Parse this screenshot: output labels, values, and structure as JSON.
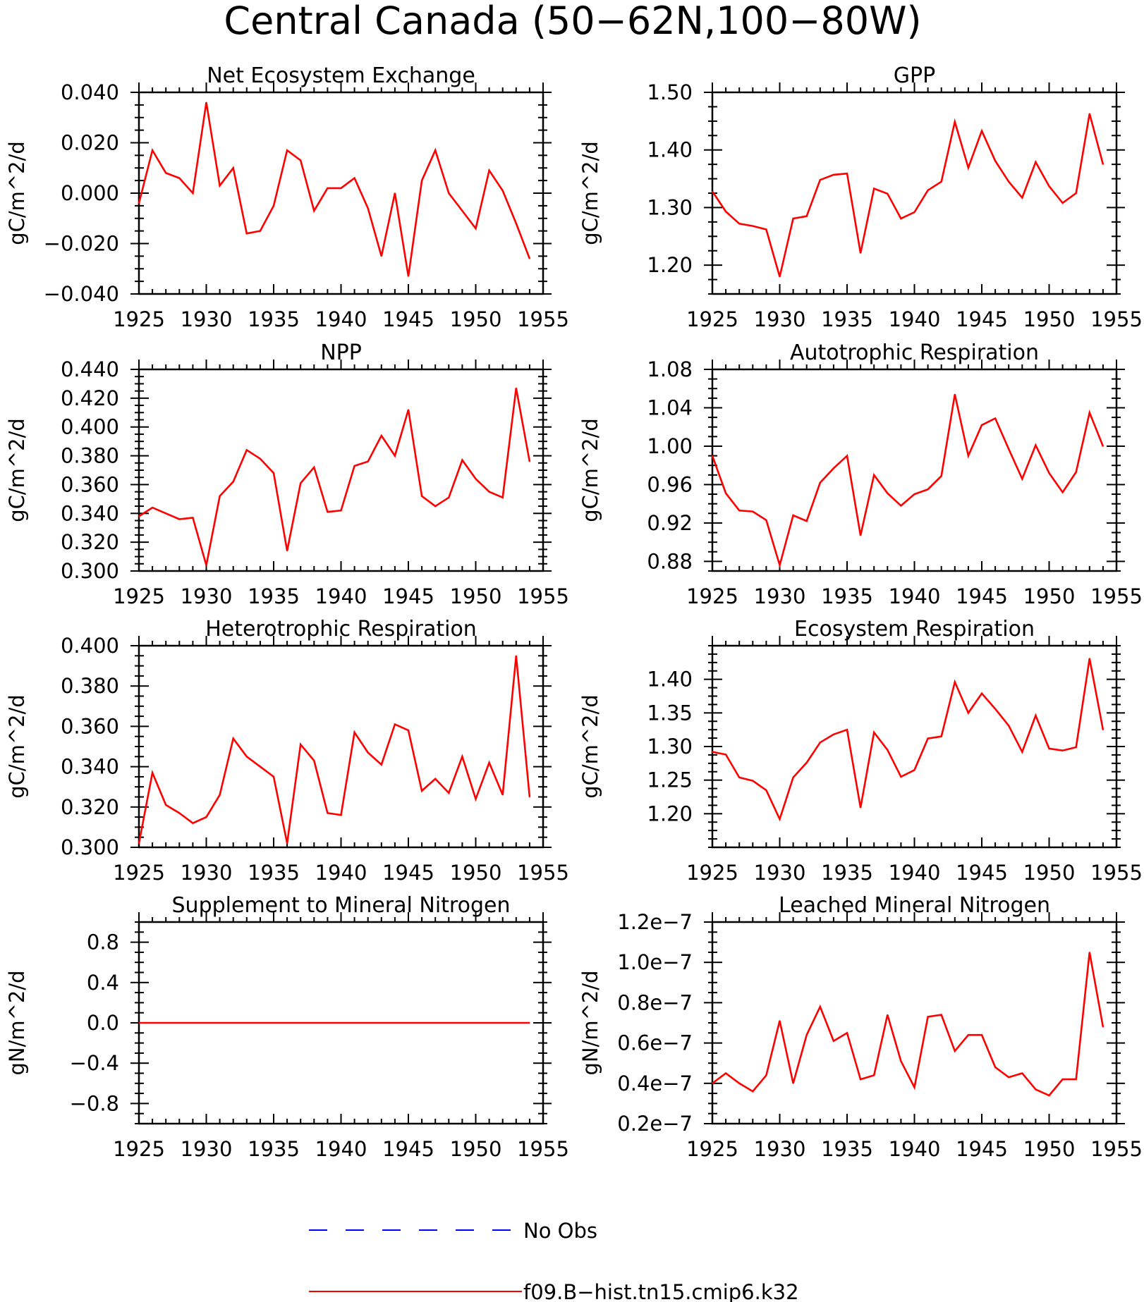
{
  "figure": {
    "title": "Central Canada (50−62N,100−80W)",
    "series_color": "#ff0000",
    "obs_color": "#0000ff"
  },
  "legend": {
    "items": [
      {
        "label": "No Obs",
        "style": "dashed",
        "color": "#0000ff"
      },
      {
        "label": "f09.B−hist.tn15.cmip6.k32",
        "style": "solid",
        "color": "#ff0000"
      }
    ]
  },
  "chart_data": [
    {
      "type": "line",
      "title": "Net Ecosystem Exchange",
      "ylabel": "gC/m^2/d",
      "xlim": [
        1925,
        1955
      ],
      "ylim": [
        -0.04,
        0.04
      ],
      "x_ticks": [
        "1925",
        "1930",
        "1935",
        "1940",
        "1945",
        "1950",
        "1955"
      ],
      "y_ticks": [
        {
          "v": 0.04,
          "label": "0.040"
        },
        {
          "v": 0.02,
          "label": "0.020"
        },
        {
          "v": 0.0,
          "label": "0.000"
        },
        {
          "v": -0.02,
          "label": "−0.020"
        },
        {
          "v": -0.04,
          "label": "−0.040"
        }
      ],
      "series": [
        {
          "x": [
            1925,
            1926,
            1927,
            1928,
            1929,
            1930,
            1931,
            1932,
            1933,
            1934,
            1935,
            1936,
            1937,
            1938,
            1939,
            1940,
            1941,
            1942,
            1943,
            1944,
            1945,
            1946,
            1947,
            1948,
            1949,
            1950,
            1951,
            1952,
            1953,
            1954
          ],
          "values": [
            -0.004,
            0.017,
            0.008,
            0.006,
            0.0,
            0.036,
            0.003,
            0.01,
            -0.016,
            -0.015,
            -0.005,
            0.017,
            0.013,
            -0.007,
            0.002,
            0.002,
            0.006,
            -0.006,
            -0.025,
            0.0,
            -0.033,
            0.005,
            0.017,
            0.0,
            -0.007,
            -0.014,
            0.009,
            0.001,
            -0.012,
            -0.026
          ]
        }
      ]
    },
    {
      "type": "line",
      "title": "GPP",
      "ylabel": "gC/m^2/d",
      "xlim": [
        1925,
        1955
      ],
      "ylim": [
        1.15,
        1.5
      ],
      "x_ticks": [
        "1925",
        "1930",
        "1935",
        "1940",
        "1945",
        "1950",
        "1955"
      ],
      "y_ticks": [
        {
          "v": 1.5,
          "label": "1.50"
        },
        {
          "v": 1.4,
          "label": "1.40"
        },
        {
          "v": 1.3,
          "label": "1.30"
        },
        {
          "v": 1.2,
          "label": "1.20"
        }
      ],
      "series": [
        {
          "x": [
            1925,
            1926,
            1927,
            1928,
            1929,
            1930,
            1931,
            1932,
            1933,
            1934,
            1935,
            1936,
            1937,
            1938,
            1939,
            1940,
            1941,
            1942,
            1943,
            1944,
            1945,
            1946,
            1947,
            1948,
            1949,
            1950,
            1951,
            1952,
            1953,
            1954
          ],
          "values": [
            1.328,
            1.293,
            1.272,
            1.268,
            1.262,
            1.18,
            1.281,
            1.285,
            1.348,
            1.357,
            1.359,
            1.221,
            1.333,
            1.324,
            1.281,
            1.292,
            1.33,
            1.345,
            1.449,
            1.369,
            1.433,
            1.381,
            1.345,
            1.317,
            1.379,
            1.337,
            1.308,
            1.325,
            1.463,
            1.375
          ]
        }
      ]
    },
    {
      "type": "line",
      "title": "NPP",
      "ylabel": "gC/m^2/d",
      "xlim": [
        1925,
        1955
      ],
      "ylim": [
        0.3,
        0.44
      ],
      "x_ticks": [
        "1925",
        "1930",
        "1935",
        "1940",
        "1945",
        "1950",
        "1955"
      ],
      "y_ticks": [
        {
          "v": 0.44,
          "label": "0.440"
        },
        {
          "v": 0.42,
          "label": "0.420"
        },
        {
          "v": 0.4,
          "label": "0.400"
        },
        {
          "v": 0.38,
          "label": "0.380"
        },
        {
          "v": 0.36,
          "label": "0.360"
        },
        {
          "v": 0.34,
          "label": "0.340"
        },
        {
          "v": 0.32,
          "label": "0.320"
        },
        {
          "v": 0.3,
          "label": "0.300"
        }
      ],
      "series": [
        {
          "x": [
            1925,
            1926,
            1927,
            1928,
            1929,
            1930,
            1931,
            1932,
            1933,
            1934,
            1935,
            1936,
            1937,
            1938,
            1939,
            1940,
            1941,
            1942,
            1943,
            1944,
            1945,
            1946,
            1947,
            1948,
            1949,
            1950,
            1951,
            1952,
            1953,
            1954
          ],
          "values": [
            0.338,
            0.344,
            0.34,
            0.336,
            0.337,
            0.304,
            0.352,
            0.362,
            0.384,
            0.378,
            0.368,
            0.314,
            0.361,
            0.372,
            0.341,
            0.342,
            0.373,
            0.376,
            0.394,
            0.38,
            0.412,
            0.352,
            0.345,
            0.351,
            0.377,
            0.364,
            0.355,
            0.351,
            0.427,
            0.376
          ]
        }
      ]
    },
    {
      "type": "line",
      "title": "Autotrophic Respiration",
      "ylabel": "gC/m^2/d",
      "xlim": [
        1925,
        1955
      ],
      "ylim": [
        0.87,
        1.08
      ],
      "x_ticks": [
        "1925",
        "1930",
        "1935",
        "1940",
        "1945",
        "1950",
        "1955"
      ],
      "y_ticks": [
        {
          "v": 1.08,
          "label": "1.08"
        },
        {
          "v": 1.04,
          "label": "1.04"
        },
        {
          "v": 1.0,
          "label": "1.00"
        },
        {
          "v": 0.96,
          "label": "0.96"
        },
        {
          "v": 0.92,
          "label": "0.92"
        },
        {
          "v": 0.88,
          "label": "0.88"
        }
      ],
      "series": [
        {
          "x": [
            1925,
            1926,
            1927,
            1928,
            1929,
            1930,
            1931,
            1932,
            1933,
            1934,
            1935,
            1936,
            1937,
            1938,
            1939,
            1940,
            1941,
            1942,
            1943,
            1944,
            1945,
            1946,
            1947,
            1948,
            1949,
            1950,
            1951,
            1952,
            1953,
            1954
          ],
          "values": [
            0.99,
            0.951,
            0.933,
            0.932,
            0.923,
            0.876,
            0.928,
            0.922,
            0.962,
            0.977,
            0.99,
            0.907,
            0.97,
            0.951,
            0.938,
            0.95,
            0.955,
            0.969,
            1.054,
            0.99,
            1.022,
            1.029,
            0.997,
            0.966,
            1.001,
            0.972,
            0.952,
            0.973,
            1.035,
            1.0
          ]
        }
      ]
    },
    {
      "type": "line",
      "title": "Heterotrophic Respiration",
      "ylabel": "gC/m^2/d",
      "xlim": [
        1925,
        1955
      ],
      "ylim": [
        0.3,
        0.4
      ],
      "x_ticks": [
        "1925",
        "1930",
        "1935",
        "1940",
        "1945",
        "1950",
        "1955"
      ],
      "y_ticks": [
        {
          "v": 0.4,
          "label": "0.400"
        },
        {
          "v": 0.38,
          "label": "0.380"
        },
        {
          "v": 0.36,
          "label": "0.360"
        },
        {
          "v": 0.34,
          "label": "0.340"
        },
        {
          "v": 0.32,
          "label": "0.320"
        },
        {
          "v": 0.3,
          "label": "0.300"
        }
      ],
      "series": [
        {
          "x": [
            1925,
            1926,
            1927,
            1928,
            1929,
            1930,
            1931,
            1932,
            1933,
            1934,
            1935,
            1936,
            1937,
            1938,
            1939,
            1940,
            1941,
            1942,
            1943,
            1944,
            1945,
            1946,
            1947,
            1948,
            1949,
            1950,
            1951,
            1952,
            1953,
            1954
          ],
          "values": [
            0.302,
            0.337,
            0.321,
            0.317,
            0.312,
            0.315,
            0.326,
            0.354,
            0.345,
            0.34,
            0.335,
            0.302,
            0.351,
            0.343,
            0.317,
            0.316,
            0.357,
            0.347,
            0.341,
            0.361,
            0.358,
            0.328,
            0.334,
            0.327,
            0.345,
            0.324,
            0.342,
            0.326,
            0.395,
            0.325
          ]
        }
      ]
    },
    {
      "type": "line",
      "title": "Ecosystem Respiration",
      "ylabel": "gC/m^2/d",
      "xlim": [
        1925,
        1955
      ],
      "ylim": [
        1.15,
        1.45
      ],
      "x_ticks": [
        "1925",
        "1930",
        "1935",
        "1940",
        "1945",
        "1950",
        "1955"
      ],
      "y_ticks": [
        {
          "v": 1.4,
          "label": "1.40"
        },
        {
          "v": 1.35,
          "label": "1.35"
        },
        {
          "v": 1.3,
          "label": "1.30"
        },
        {
          "v": 1.25,
          "label": "1.25"
        },
        {
          "v": 1.2,
          "label": "1.20"
        }
      ],
      "series": [
        {
          "x": [
            1925,
            1926,
            1927,
            1928,
            1929,
            1930,
            1931,
            1932,
            1933,
            1934,
            1935,
            1936,
            1937,
            1938,
            1939,
            1940,
            1941,
            1942,
            1943,
            1944,
            1945,
            1946,
            1947,
            1948,
            1949,
            1950,
            1951,
            1952,
            1953,
            1954
          ],
          "values": [
            1.292,
            1.288,
            1.254,
            1.249,
            1.235,
            1.192,
            1.254,
            1.276,
            1.306,
            1.318,
            1.325,
            1.209,
            1.321,
            1.295,
            1.255,
            1.265,
            1.312,
            1.315,
            1.396,
            1.35,
            1.379,
            1.356,
            1.331,
            1.292,
            1.346,
            1.297,
            1.294,
            1.299,
            1.431,
            1.325
          ]
        }
      ]
    },
    {
      "type": "line",
      "title": "Supplement to Mineral Nitrogen",
      "ylabel": "gN/m^2/d",
      "xlim": [
        1925,
        1955
      ],
      "ylim": [
        -1.0,
        1.0
      ],
      "x_ticks": [
        "1925",
        "1930",
        "1935",
        "1940",
        "1945",
        "1950",
        "1955"
      ],
      "y_ticks": [
        {
          "v": 0.8,
          "label": "0.8"
        },
        {
          "v": 0.4,
          "label": "0.4"
        },
        {
          "v": 0.0,
          "label": "0.0"
        },
        {
          "v": -0.4,
          "label": "−0.4"
        },
        {
          "v": -0.8,
          "label": "−0.8"
        }
      ],
      "series": [
        {
          "x": [
            1925,
            1926,
            1927,
            1928,
            1929,
            1930,
            1931,
            1932,
            1933,
            1934,
            1935,
            1936,
            1937,
            1938,
            1939,
            1940,
            1941,
            1942,
            1943,
            1944,
            1945,
            1946,
            1947,
            1948,
            1949,
            1950,
            1951,
            1952,
            1953,
            1954
          ],
          "values": [
            0,
            0,
            0,
            0,
            0,
            0,
            0,
            0,
            0,
            0,
            0,
            0,
            0,
            0,
            0,
            0,
            0,
            0,
            0,
            0,
            0,
            0,
            0,
            0,
            0,
            0,
            0,
            0,
            0,
            0
          ]
        }
      ]
    },
    {
      "type": "line",
      "title": "Leached Mineral Nitrogen",
      "ylabel": "gN/m^2/d",
      "xlim": [
        1925,
        1955
      ],
      "ylim": [
        2e-08,
        1.2e-07
      ],
      "x_ticks": [
        "1925",
        "1930",
        "1935",
        "1940",
        "1945",
        "1950",
        "1955"
      ],
      "y_ticks": [
        {
          "v": 1.2e-07,
          "label": "1.2e−7"
        },
        {
          "v": 1e-07,
          "label": "1.0e−7"
        },
        {
          "v": 8e-08,
          "label": "0.8e−7"
        },
        {
          "v": 6e-08,
          "label": "0.6e−7"
        },
        {
          "v": 4e-08,
          "label": "0.4e−7"
        },
        {
          "v": 2e-08,
          "label": "0.2e−7"
        }
      ],
      "series": [
        {
          "x": [
            1925,
            1926,
            1927,
            1928,
            1929,
            1930,
            1931,
            1932,
            1933,
            1934,
            1935,
            1936,
            1937,
            1938,
            1939,
            1940,
            1941,
            1942,
            1943,
            1944,
            1945,
            1946,
            1947,
            1948,
            1949,
            1950,
            1951,
            1952,
            1953,
            1954
          ],
          "values": [
            4e-08,
            4.5e-08,
            4e-08,
            3.6e-08,
            4.4e-08,
            7.1e-08,
            4e-08,
            6.4e-08,
            7.8e-08,
            6.1e-08,
            6.5e-08,
            4.2e-08,
            4.4e-08,
            7.4e-08,
            5.1e-08,
            3.8e-08,
            7.3e-08,
            7.4e-08,
            5.6e-08,
            6.4e-08,
            6.4e-08,
            4.8e-08,
            4.3e-08,
            4.5e-08,
            3.7e-08,
            3.4e-08,
            4.2e-08,
            4.2e-08,
            1.05e-07,
            6.8e-08
          ]
        }
      ]
    }
  ]
}
